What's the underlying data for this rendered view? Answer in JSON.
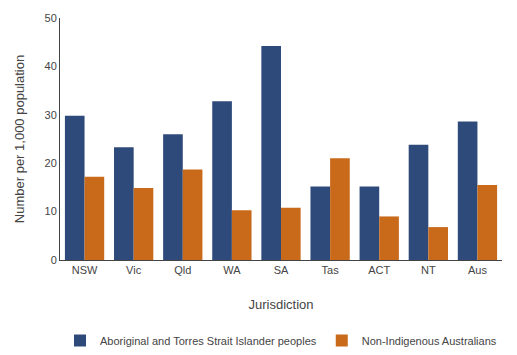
{
  "chart_data": {
    "type": "bar",
    "categories": [
      "NSW",
      "Vic",
      "Qld",
      "WA",
      "SA",
      "Tas",
      "ACT",
      "NT",
      "Aus"
    ],
    "series": [
      {
        "name": "Aboriginal and Torres Strait Islander peoples",
        "color": "#2E4A7A",
        "values": [
          29.8,
          23.3,
          26.0,
          32.8,
          44.2,
          15.2,
          15.2,
          23.8,
          28.6
        ]
      },
      {
        "name": "Non-Indigenous Australians",
        "color": "#C86A1A",
        "values": [
          17.2,
          14.9,
          18.7,
          10.3,
          10.8,
          21.0,
          9.0,
          6.8,
          15.5
        ]
      }
    ],
    "xlabel": "Jurisdiction",
    "ylabel": "Number per 1,000 population",
    "ylim": [
      0,
      50
    ],
    "yticks": [
      0,
      10,
      20,
      30,
      40,
      50
    ],
    "grid": false,
    "legend": "bottom"
  }
}
